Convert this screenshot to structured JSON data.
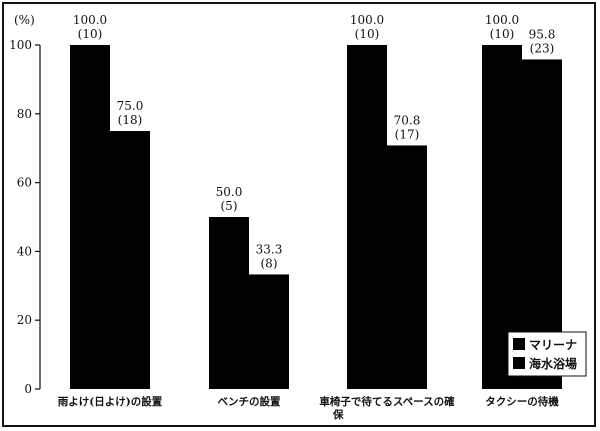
{
  "chart_data": {
    "type": "bar",
    "unit_label": "(%)",
    "categories": [
      "雨よけ(日よけ)の設置",
      "ベンチの設置",
      "車椅子で待てるスペースの確保",
      "タクシーの待機"
    ],
    "category_lines": [
      [
        "雨よけ(日よけ)の設置"
      ],
      [
        "ベンチの設置"
      ],
      [
        "車椅子で待てるスペースの確",
        "保"
      ],
      [
        "タクシーの待機"
      ]
    ],
    "series": [
      {
        "name": "マリーナ",
        "values": [
          100.0,
          50.0,
          100.0,
          100.0
        ],
        "counts": [
          10,
          5,
          10,
          10
        ]
      },
      {
        "name": "海水浴場",
        "values": [
          75.0,
          33.3,
          70.8,
          95.8
        ],
        "counts": [
          18,
          8,
          17,
          23
        ]
      }
    ],
    "ylim": [
      0,
      100
    ],
    "yticks": [
      0,
      20,
      40,
      60,
      80,
      100
    ],
    "xlabel": "",
    "ylabel": "",
    "legend_position": "bottom-right",
    "bar_color": "#000000"
  }
}
